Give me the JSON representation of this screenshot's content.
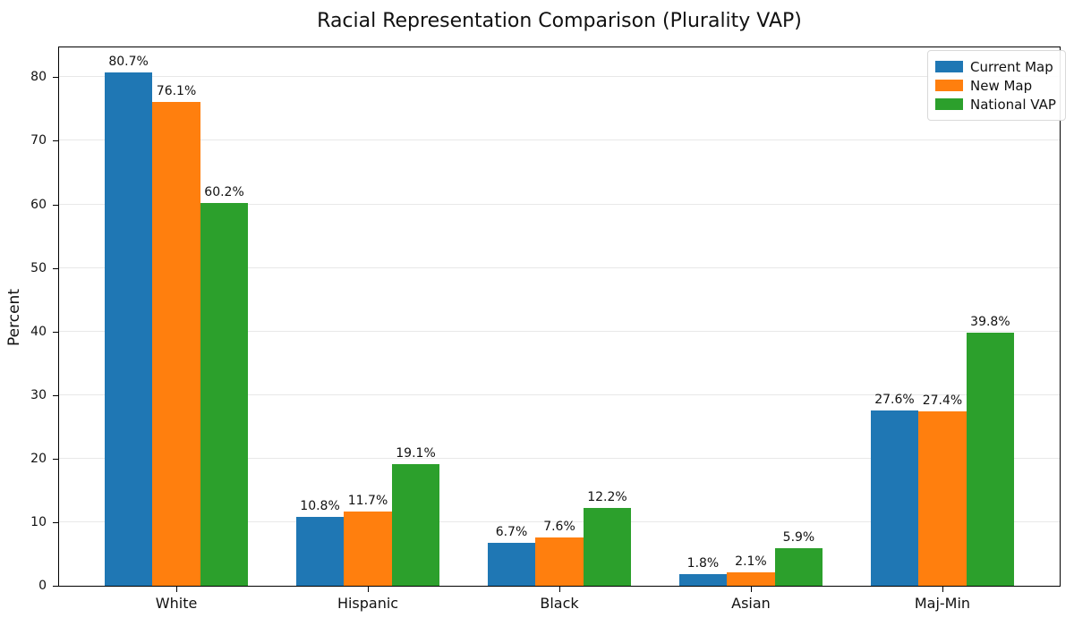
{
  "chart_data": {
    "type": "bar",
    "title": "Racial Representation Comparison (Plurality VAP)",
    "ylabel": "Percent",
    "xlabel": "",
    "categories": [
      "White",
      "Hispanic",
      "Black",
      "Asian",
      "Maj-Min"
    ],
    "series": [
      {
        "name": "Current Map",
        "color": "#1f77b4",
        "values": [
          80.7,
          10.8,
          6.7,
          1.8,
          27.6
        ]
      },
      {
        "name": "New Map",
        "color": "#ff7f0e",
        "values": [
          76.1,
          11.7,
          7.6,
          2.1,
          27.4
        ]
      },
      {
        "name": "National VAP",
        "color": "#2ca02c",
        "values": [
          60.2,
          19.1,
          12.2,
          5.9,
          39.8
        ]
      }
    ],
    "bar_value_labels": true,
    "value_suffix": "%",
    "value_decimals": 1,
    "yticks": [
      0,
      10,
      20,
      30,
      40,
      50,
      60,
      70,
      80
    ],
    "ylim": [
      0,
      84.7
    ],
    "grid": true,
    "grid_color": "#e8e8e8",
    "legend_position": "upper right",
    "background_color": "#ffffff"
  }
}
